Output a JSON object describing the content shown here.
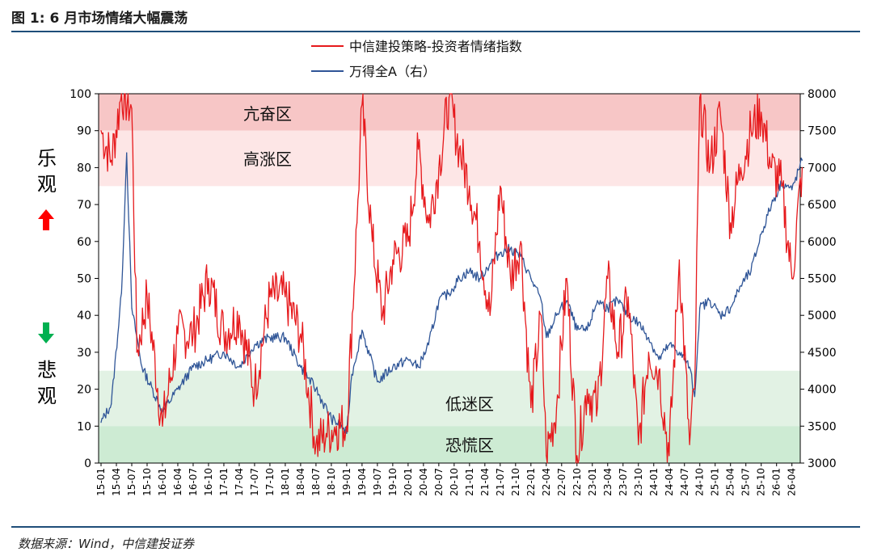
{
  "title": "图 1: 6 月市场情绪大幅震荡",
  "source": "数据来源：Wind，中信建投证券",
  "side_labels": {
    "optimistic_1": "乐",
    "optimistic_2": "观",
    "pessimistic_1": "悲",
    "pessimistic_2": "观"
  },
  "colors": {
    "sentiment": "#e6191c",
    "index": "#2f5597",
    "zone_high": "#f7c6c6",
    "zone_mid": "#fde6e6",
    "zone_low": "#e2f2e4",
    "zone_panic": "#cdebd3",
    "rule": "#1f4e79",
    "up_arrow": "#ff0000",
    "down_arrow": "#00b050"
  },
  "chart_data": {
    "type": "line",
    "legend": [
      "中信建投策略-投资者情绪指数",
      "万得全A（右）"
    ],
    "left_axis": {
      "min": 0,
      "max": 100,
      "ticks": [
        "0",
        "10",
        "20",
        "30",
        "40",
        "50",
        "60",
        "70",
        "80",
        "90",
        "100"
      ]
    },
    "right_axis": {
      "min": 3000,
      "max": 8000,
      "ticks": [
        "3000",
        "3500",
        "4000",
        "4500",
        "5000",
        "5500",
        "6000",
        "6500",
        "7000",
        "7500",
        "8000"
      ]
    },
    "x_ticks": [
      "15-01",
      "15-04",
      "15-07",
      "15-10",
      "16-01",
      "16-04",
      "16-07",
      "16-10",
      "17-01",
      "17-04",
      "17-07",
      "17-10",
      "18-01",
      "18-04",
      "18-07",
      "18-10",
      "19-01",
      "19-04",
      "19-07",
      "19-10",
      "20-01",
      "20-04",
      "20-07",
      "20-10",
      "21-01",
      "21-04",
      "21-07",
      "21-10",
      "22-01",
      "22-04",
      "22-07",
      "22-10",
      "23-01",
      "23-04",
      "23-07",
      "23-10",
      "24-01",
      "24-04",
      "24-07",
      "24-10",
      "25-01",
      "25-04",
      "25-07",
      "25-10",
      "26-01",
      "26-04"
    ],
    "zones": [
      {
        "label": "亢奋区",
        "from": 90,
        "to": 100
      },
      {
        "label": "高涨区",
        "from": 75,
        "to": 90
      },
      {
        "label": "低迷区",
        "from": 10,
        "to": 25
      },
      {
        "label": "恐慌区",
        "from": 0,
        "to": 10
      }
    ],
    "series": [
      {
        "name": "中信建投策略-投资者情绪指数",
        "axis": "left",
        "x": [
          "15-01",
          "15-03",
          "15-05",
          "15-07",
          "15-08",
          "15-10",
          "16-01",
          "16-04",
          "16-07",
          "16-10",
          "17-01",
          "17-04",
          "17-07",
          "17-10",
          "18-01",
          "18-04",
          "18-07",
          "18-09",
          "18-11",
          "19-01",
          "19-03",
          "19-04",
          "19-06",
          "19-08",
          "19-10",
          "20-01",
          "20-03",
          "20-05",
          "20-07",
          "20-09",
          "20-11",
          "21-01",
          "21-03",
          "21-05",
          "21-07",
          "21-09",
          "21-11",
          "22-01",
          "22-03",
          "22-04",
          "22-06",
          "22-08",
          "22-10",
          "22-12",
          "23-02",
          "23-04",
          "23-06",
          "23-08",
          "23-10",
          "23-12",
          "24-02",
          "24-04",
          "24-06",
          "24-08",
          "24-09",
          "24-10",
          "24-12",
          "25-02",
          "25-04",
          "25-06",
          "25-08",
          "25-10",
          "25-12",
          "26-02",
          "26-04",
          "26-06"
        ],
        "values": [
          90,
          82,
          100,
          96,
          30,
          45,
          10,
          35,
          35,
          50,
          35,
          40,
          20,
          45,
          45,
          35,
          5,
          8,
          10,
          10,
          65,
          97,
          60,
          40,
          55,
          60,
          85,
          65,
          80,
          99,
          85,
          75,
          60,
          40,
          75,
          50,
          60,
          15,
          40,
          2,
          15,
          50,
          2,
          20,
          15,
          50,
          30,
          45,
          5,
          30,
          25,
          2,
          55,
          5,
          20,
          99,
          80,
          95,
          65,
          80,
          90,
          95,
          80,
          75,
          50,
          80
        ]
      },
      {
        "name": "万得全A（右）",
        "axis": "right",
        "x": [
          "15-01",
          "15-03",
          "15-05",
          "15-06",
          "15-07",
          "15-09",
          "16-01",
          "16-04",
          "16-07",
          "16-10",
          "17-01",
          "17-04",
          "17-07",
          "17-10",
          "18-01",
          "18-04",
          "18-07",
          "18-10",
          "18-12",
          "19-01",
          "19-02",
          "19-04",
          "19-07",
          "19-10",
          "20-01",
          "20-03",
          "20-05",
          "20-07",
          "20-09",
          "20-11",
          "21-01",
          "21-03",
          "21-05",
          "21-07",
          "21-09",
          "21-11",
          "22-01",
          "22-03",
          "22-04",
          "22-06",
          "22-08",
          "22-10",
          "22-12",
          "23-02",
          "23-04",
          "23-06",
          "23-08",
          "23-10",
          "23-12",
          "24-02",
          "24-04",
          "24-06",
          "24-08",
          "24-09",
          "24-10",
          "24-12",
          "25-02",
          "25-04",
          "25-06",
          "25-08",
          "25-10",
          "25-12",
          "26-02",
          "26-04",
          "26-06"
        ],
        "values": [
          3550,
          3800,
          5300,
          7200,
          5100,
          4300,
          3700,
          4000,
          4300,
          4400,
          4500,
          4300,
          4600,
          4700,
          4700,
          4300,
          4000,
          3600,
          3500,
          3400,
          4200,
          4800,
          4100,
          4300,
          4400,
          4300,
          4600,
          5200,
          5300,
          5500,
          5600,
          5500,
          5700,
          5850,
          5900,
          5800,
          5500,
          5200,
          4700,
          5000,
          5200,
          4800,
          4800,
          5200,
          5100,
          5200,
          5000,
          4900,
          4700,
          4400,
          4600,
          4500,
          4300,
          3900,
          5100,
          5200,
          5000,
          5100,
          5400,
          5600,
          6100,
          6500,
          6800,
          6700,
          7100
        ]
      }
    ]
  }
}
